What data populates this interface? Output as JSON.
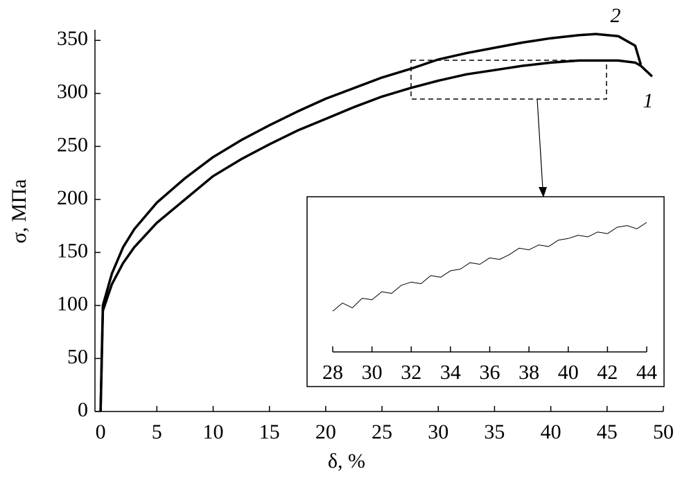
{
  "chart_data": [
    {
      "type": "line",
      "xlabel": "δ, %",
      "ylabel": "σ, МПа",
      "x": [
        0,
        0.2,
        1,
        2,
        3,
        5,
        7.5,
        10,
        12.5,
        15,
        17.5,
        20,
        22.5,
        25,
        27.5,
        30,
        32.5,
        35,
        37.5,
        40,
        42.5,
        44,
        46,
        47.5,
        48,
        49
      ],
      "series": [
        {
          "name": "1",
          "color": "#000000",
          "values": [
            0,
            95,
            120,
            140,
            155,
            178,
            200,
            222,
            238,
            252,
            265,
            276,
            287,
            297,
            305,
            312,
            318,
            322,
            326,
            329,
            331,
            331,
            331,
            329,
            326,
            316
          ]
        },
        {
          "name": "2",
          "color": "#000000",
          "values": [
            0,
            100,
            130,
            155,
            172,
            197,
            220,
            240,
            256,
            270,
            283,
            295,
            305,
            315,
            323,
            332,
            338,
            343,
            348,
            352,
            355,
            356,
            354,
            345,
            327,
            null
          ]
        }
      ],
      "xlim": [
        -0.5,
        50
      ],
      "xticks": [
        0,
        5,
        10,
        15,
        20,
        25,
        30,
        35,
        40,
        45,
        50
      ],
      "ylim": [
        0,
        360
      ],
      "yticks": [
        0,
        50,
        100,
        150,
        200,
        250,
        300,
        350
      ]
    },
    {
      "type": "line",
      "x": [
        28,
        28.5,
        29,
        29.5,
        30,
        30.5,
        31,
        31.5,
        32,
        32.5,
        33,
        33.5,
        34,
        34.5,
        35,
        35.5,
        36,
        36.5,
        37,
        37.5,
        38,
        38.5,
        39,
        39.5,
        40,
        40.5,
        41,
        41.5,
        42,
        42.5,
        43,
        43.5,
        44
      ],
      "series": [
        {
          "color": "#000000",
          "values": [
            304,
            306.5,
            305,
            308,
            307.5,
            310,
            309.5,
            312,
            313,
            312.5,
            315,
            314.5,
            316.5,
            317,
            319,
            318.5,
            320.5,
            320,
            321.5,
            323.5,
            323,
            324.5,
            324,
            326,
            326.5,
            327.5,
            327,
            328.5,
            328,
            330,
            330.5,
            329.5,
            331.5
          ]
        }
      ],
      "xlim": [
        28,
        44
      ],
      "xticks": [
        28,
        30,
        32,
        34,
        36,
        38,
        40,
        42,
        44
      ],
      "ylim": [
        292,
        336
      ]
    }
  ]
}
